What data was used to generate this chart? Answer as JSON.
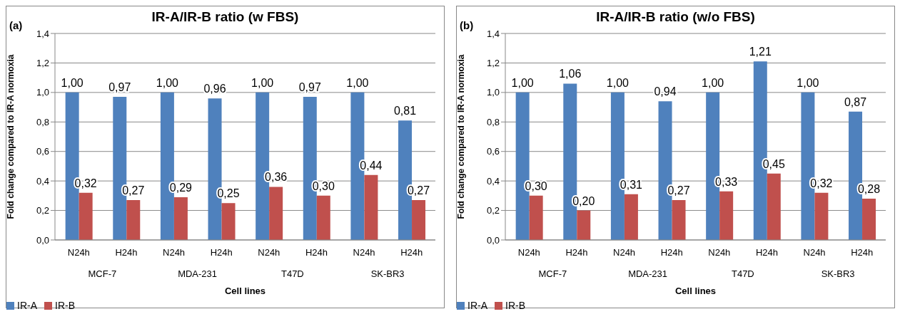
{
  "chart_data": [
    {
      "type": "bar",
      "title": "IR-A/IR-B ratio (w FBS)",
      "xlabel": "Cell lines",
      "ylabel": "Fold change compared to IR-A normoxia",
      "categories": [
        "N24h",
        "H24h",
        "N24h",
        "H24h",
        "N24h",
        "H24h",
        "N24h",
        "H24h"
      ],
      "annotations": [
        "(a)",
        "MCF-7",
        "MDA-231",
        "T47D",
        "SK-BR3"
      ],
      "series": [
        {
          "name": "IR-A",
          "color": "#4f81bd",
          "values": [
            1.0,
            0.97,
            1.0,
            0.96,
            1.0,
            0.97,
            1.0,
            0.81
          ],
          "value_labels": [
            "1,00",
            "0,97",
            "1,00",
            "0,96",
            "1,00",
            "0,97",
            "1,00",
            "0,81"
          ]
        },
        {
          "name": "IR-B",
          "color": "#c0504d",
          "values": [
            0.32,
            0.27,
            0.29,
            0.25,
            0.36,
            0.3,
            0.44,
            0.27
          ],
          "value_labels": [
            "0,32",
            "0,27",
            "0,29",
            "0,25",
            "0,36",
            "0,30",
            "0,44",
            "0,27"
          ]
        }
      ],
      "ylim": [
        0,
        1.4
      ],
      "yticks": [
        {
          "value": 0,
          "label": "0,0"
        },
        {
          "value": 0.2,
          "label": "0,2"
        },
        {
          "value": 0.4,
          "label": "0,4"
        },
        {
          "value": 0.6,
          "label": "0,6"
        },
        {
          "value": 0.8,
          "label": "0,8"
        },
        {
          "value": 1.0,
          "label": "1,0"
        },
        {
          "value": 1.2,
          "label": "1,2"
        },
        {
          "value": 1.4,
          "label": "1,4"
        }
      ],
      "grid": "y",
      "legend": "bottom left"
    },
    {
      "type": "bar",
      "title": "IR-A/IR-B ratio (w/o FBS)",
      "xlabel": "Cell lines",
      "ylabel": "Fold change compared to IR-A normoxia",
      "categories": [
        "N24h",
        "H24h",
        "N24h",
        "H24h",
        "N24h",
        "H24h",
        "N24h",
        "H24h"
      ],
      "annotations": [
        "(b)",
        "MCF-7",
        "MDA-231",
        "T47D",
        "SK-BR3"
      ],
      "series": [
        {
          "name": "IR-A",
          "color": "#4f81bd",
          "values": [
            1.0,
            1.06,
            1.0,
            0.94,
            1.0,
            1.21,
            1.0,
            0.87
          ],
          "value_labels": [
            "1,00",
            "1,06",
            "1,00",
            "0,94",
            "1,00",
            "1,21",
            "1,00",
            "0,87"
          ]
        },
        {
          "name": "IR-B",
          "color": "#c0504d",
          "values": [
            0.3,
            0.2,
            0.31,
            0.27,
            0.33,
            0.45,
            0.32,
            0.28
          ],
          "value_labels": [
            "0,30",
            "0,20",
            "0,31",
            "0,27",
            "0,33",
            "0,45",
            "0,32",
            "0,28"
          ]
        }
      ],
      "ylim": [
        0,
        1.4
      ],
      "yticks": [
        {
          "value": 0,
          "label": "0,0"
        },
        {
          "value": 0.2,
          "label": "0,2"
        },
        {
          "value": 0.4,
          "label": "0,4"
        },
        {
          "value": 0.6,
          "label": "0,6"
        },
        {
          "value": 0.8,
          "label": "0,8"
        },
        {
          "value": 1.0,
          "label": "1,0"
        },
        {
          "value": 1.2,
          "label": "1,2"
        },
        {
          "value": 1.4,
          "label": "1,4"
        }
      ],
      "grid": "y",
      "legend": "bottom left"
    }
  ]
}
